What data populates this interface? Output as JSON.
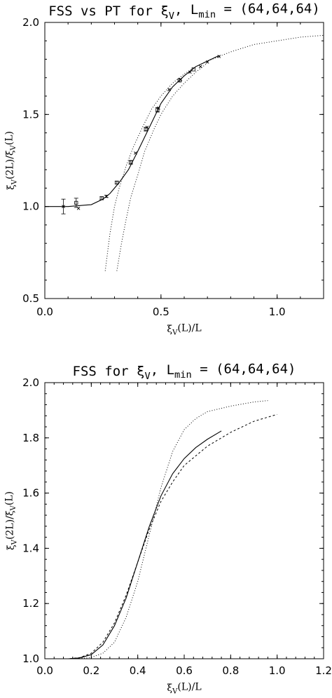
{
  "chart_data": [
    {
      "type": "line",
      "title": "FSS vs PT for ξ_V, L_min = (64,64,64)",
      "xlabel": "ξ_V(L)/L",
      "ylabel": "ξ_V(2L)/ξ_V(L)",
      "xlim": [
        0.0,
        1.2
      ],
      "ylim": [
        0.5,
        2.0
      ],
      "xticks": [
        0.0,
        0.5,
        1.0
      ],
      "yticks": [
        0.5,
        1.0,
        1.5,
        2.0
      ],
      "xtick_labels": [
        "0.0",
        "0.5",
        "1.0"
      ],
      "ytick_labels": [
        "0.5",
        "1.0",
        "1.5",
        "2.0"
      ],
      "grid": false,
      "series": [
        {
          "style": "solid",
          "x": [
            0.0,
            0.1,
            0.2,
            0.25,
            0.28,
            0.32,
            0.36,
            0.4,
            0.45,
            0.5,
            0.55,
            0.6,
            0.65,
            0.7,
            0.75
          ],
          "y": [
            1.0,
            1.0,
            1.01,
            1.04,
            1.07,
            1.13,
            1.2,
            1.3,
            1.43,
            1.56,
            1.65,
            1.71,
            1.76,
            1.79,
            1.82
          ]
        },
        {
          "style": "dotted",
          "x": [
            0.26,
            0.28,
            0.3,
            0.32,
            0.35,
            0.38,
            0.42,
            0.46,
            0.5,
            0.55,
            0.6,
            0.65,
            0.7,
            0.8,
            0.9,
            1.0,
            1.1,
            1.2
          ],
          "y": [
            0.65,
            0.85,
            1.0,
            1.1,
            1.22,
            1.32,
            1.43,
            1.53,
            1.6,
            1.67,
            1.72,
            1.76,
            1.79,
            1.84,
            1.88,
            1.9,
            1.92,
            1.93
          ]
        },
        {
          "style": "dotted",
          "x": [
            0.31,
            0.33,
            0.35,
            0.37,
            0.4,
            0.43,
            0.47,
            0.5,
            0.55,
            0.6,
            0.65,
            0.7
          ],
          "y": [
            0.65,
            0.8,
            0.93,
            1.05,
            1.17,
            1.3,
            1.42,
            1.5,
            1.6,
            1.67,
            1.73,
            1.78
          ]
        }
      ],
      "points": [
        {
          "x": 0.08,
          "y": 1.0,
          "err": 0.04,
          "marker": "x"
        },
        {
          "x": 0.135,
          "y": 1.02,
          "err": 0.025,
          "marker": "square"
        },
        {
          "x": 0.145,
          "y": 0.99,
          "err": 0.0,
          "marker": "x"
        },
        {
          "x": 0.245,
          "y": 1.045,
          "err": 0.008,
          "marker": "square"
        },
        {
          "x": 0.265,
          "y": 1.055,
          "err": 0.006,
          "marker": "x"
        },
        {
          "x": 0.31,
          "y": 1.13,
          "err": 0.008,
          "marker": "square"
        },
        {
          "x": 0.37,
          "y": 1.24,
          "err": 0.01,
          "marker": "square"
        },
        {
          "x": 0.39,
          "y": 1.29,
          "err": 0.0,
          "marker": "x"
        },
        {
          "x": 0.435,
          "y": 1.42,
          "err": 0.01,
          "marker": "square"
        },
        {
          "x": 0.44,
          "y": 1.43,
          "err": 0.0,
          "marker": "x"
        },
        {
          "x": 0.485,
          "y": 1.525,
          "err": 0.012,
          "marker": "square"
        },
        {
          "x": 0.49,
          "y": 1.535,
          "err": 0.0,
          "marker": "x"
        },
        {
          "x": 0.535,
          "y": 1.635,
          "err": 0.0,
          "marker": "x"
        },
        {
          "x": 0.58,
          "y": 1.685,
          "err": 0.008,
          "marker": "square"
        },
        {
          "x": 0.585,
          "y": 1.69,
          "err": 0.0,
          "marker": "x"
        },
        {
          "x": 0.625,
          "y": 1.73,
          "err": 0.0,
          "marker": "x"
        },
        {
          "x": 0.64,
          "y": 1.745,
          "err": 0.0,
          "marker": "square"
        },
        {
          "x": 0.67,
          "y": 1.76,
          "err": 0.0,
          "marker": "x"
        },
        {
          "x": 0.7,
          "y": 1.785,
          "err": 0.0,
          "marker": "x"
        },
        {
          "x": 0.75,
          "y": 1.815,
          "err": 0.0,
          "marker": "x"
        }
      ]
    },
    {
      "type": "line",
      "title": "FSS for ξ_V, L_min = (64,64,64)",
      "xlabel": "ξ_V(L)/L",
      "ylabel": "ξ_V(2L)/ξ_V(L)",
      "xlim": [
        0.0,
        1.2
      ],
      "ylim": [
        1.0,
        2.0
      ],
      "xticks": [
        0.0,
        0.2,
        0.4,
        0.6,
        0.8,
        1.0,
        1.2
      ],
      "yticks": [
        1.0,
        1.2,
        1.4,
        1.6,
        1.8,
        2.0
      ],
      "xtick_labels": [
        "0.0",
        "0.2",
        "0.4",
        "0.6",
        "0.8",
        "1.0",
        "1.2"
      ],
      "ytick_labels": [
        "1.0",
        "1.2",
        "1.4",
        "1.6",
        "1.8",
        "2.0"
      ],
      "grid": false,
      "series": [
        {
          "style": "solid",
          "x": [
            0.0,
            0.1,
            0.15,
            0.2,
            0.25,
            0.3,
            0.35,
            0.4,
            0.45,
            0.5,
            0.55,
            0.6,
            0.65,
            0.7,
            0.76
          ],
          "y": [
            1.0,
            1.0,
            1.003,
            1.015,
            1.05,
            1.12,
            1.22,
            1.35,
            1.48,
            1.59,
            1.67,
            1.725,
            1.765,
            1.795,
            1.825
          ]
        },
        {
          "style": "dashed",
          "x": [
            0.0,
            0.1,
            0.15,
            0.2,
            0.25,
            0.3,
            0.35,
            0.4,
            0.45,
            0.5,
            0.55,
            0.6,
            0.7,
            0.8,
            0.9,
            1.0
          ],
          "y": [
            1.0,
            1.0,
            1.004,
            1.02,
            1.06,
            1.13,
            1.23,
            1.35,
            1.47,
            1.57,
            1.64,
            1.7,
            1.77,
            1.82,
            1.86,
            1.885
          ]
        },
        {
          "style": "dotted",
          "x": [
            0.0,
            0.15,
            0.2,
            0.25,
            0.3,
            0.35,
            0.4,
            0.45,
            0.5,
            0.55,
            0.6,
            0.65,
            0.7,
            0.8,
            0.9,
            0.96
          ],
          "y": [
            1.0,
            1.0,
            1.005,
            1.02,
            1.06,
            1.15,
            1.28,
            1.45,
            1.62,
            1.75,
            1.83,
            1.87,
            1.895,
            1.915,
            1.93,
            1.935
          ]
        }
      ]
    }
  ]
}
